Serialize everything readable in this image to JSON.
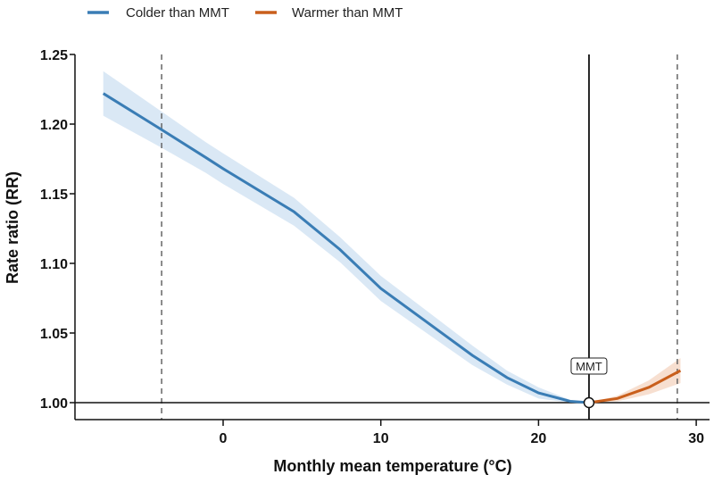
{
  "chart_data": {
    "type": "line",
    "title": "",
    "xlabel": "Monthly mean temperature (°C)",
    "ylabel": "Rate ratio (RR)",
    "xlim": [
      -8.8,
      31
    ],
    "ylim": [
      0.988,
      1.25
    ],
    "x_ticks": [
      0,
      10,
      20,
      30
    ],
    "y_ticks": [
      1.0,
      1.05,
      1.1,
      1.15,
      1.2,
      1.25
    ],
    "y_tick_labels": [
      "1.00",
      "1.05",
      "1.10",
      "1.15",
      "1.20",
      "1.25"
    ],
    "grid": false,
    "legend_placement": "top",
    "reference_line_y": 1.0,
    "mmt": {
      "label": "MMT",
      "x": 23.2,
      "y": 1.0
    },
    "percentile_lines_x": [
      -3.9,
      28.8
    ],
    "series": [
      {
        "name": "Colder than MMT",
        "color": "#3a7db5",
        "band_color": "#d6e6f4",
        "x": [
          -7.6,
          -3.9,
          -1.1,
          0,
          4.5,
          7.4,
          10,
          15.8,
          18,
          20,
          22,
          23.2
        ],
        "y": [
          1.222,
          1.196,
          1.176,
          1.168,
          1.137,
          1.11,
          1.082,
          1.034,
          1.018,
          1.007,
          1.001,
          1.0
        ],
        "lower": [
          1.206,
          1.183,
          1.165,
          1.157,
          1.127,
          1.101,
          1.073,
          1.027,
          1.013,
          1.003,
          1.0,
          1.0
        ],
        "upper": [
          1.238,
          1.209,
          1.187,
          1.179,
          1.147,
          1.119,
          1.091,
          1.041,
          1.023,
          1.011,
          1.002,
          1.0
        ]
      },
      {
        "name": "Warmer than MMT",
        "color": "#c95f1c",
        "band_color": "#f6dccb",
        "x": [
          23.2,
          25,
          27,
          29
        ],
        "y": [
          1.0,
          1.003,
          1.011,
          1.023
        ],
        "lower": [
          1.0,
          1.001,
          1.006,
          1.014
        ],
        "upper": [
          1.0,
          1.005,
          1.016,
          1.032
        ]
      }
    ]
  }
}
